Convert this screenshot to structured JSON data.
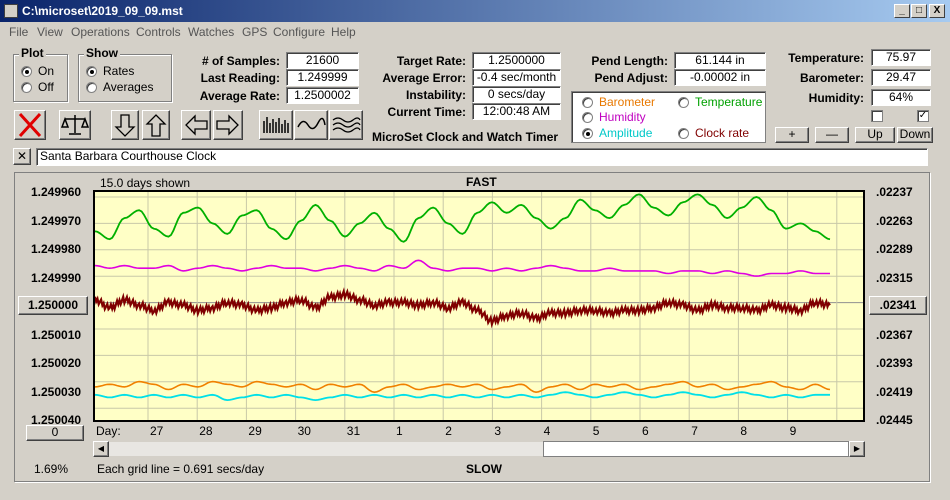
{
  "window": {
    "title": "C:\\microset\\2019_09_09.mst",
    "min": "_",
    "max": "□",
    "close": "X"
  },
  "menu": [
    "File",
    "View",
    "Operations",
    "Controls",
    "Watches",
    "GPS",
    "Configure",
    "Help"
  ],
  "plot_group": {
    "title": "Plot",
    "on": "On",
    "off": "Off",
    "selected": "On"
  },
  "show_group": {
    "title": "Show",
    "rates": "Rates",
    "averages": "Averages",
    "selected": "Rates"
  },
  "stats": {
    "samples_label": "# of Samples:",
    "samples": "21600",
    "last_label": "Last Reading:",
    "last": "1.249999",
    "avg_label": "Average Rate:",
    "avg": "1.2500002",
    "target_label": "Target Rate:",
    "target": "1.2500000",
    "err_label": "Average Error:",
    "err": "-0.4 sec/month",
    "inst_label": "Instability:",
    "inst": "0 secs/day",
    "time_label": "Current Time:",
    "time": "12:00:48 AM",
    "pend_len_label": "Pend Length:",
    "pend_len": "61.144 in",
    "pend_adj_label": "Pend Adjust:",
    "pend_adj": "-0.00002 in",
    "temp_label": "Temperature:",
    "temp": "75.97",
    "baro_label": "Barometer:",
    "baro": "29.47",
    "hum_label": "Humidity:",
    "hum": "64%"
  },
  "app_name": "MicroSet Clock and Watch Timer",
  "sensor_options": [
    {
      "label": "Barometer",
      "color": "#e87800"
    },
    {
      "label": "Temperature",
      "color": "#00a000"
    },
    {
      "label": "Humidity",
      "color": "#c000c0"
    },
    {
      "label": "Amplitude",
      "color": "#00c8c8"
    },
    {
      "label": "Clock rate",
      "color": "#800000"
    }
  ],
  "sensor_selected": "Amplitude",
  "adjust_buttons": {
    "plus": "+",
    "minus": "—",
    "up": "Up",
    "down": "Down"
  },
  "clock_name": "Santa Barbara Courthouse Clock",
  "clear_icon": "x-icon",
  "toolbar_icons": [
    "stop-icon",
    "balance-icon",
    "arrow-down-icon",
    "arrow-up-icon",
    "arrow-left-icon",
    "arrow-right-icon",
    "bar-graph-icon",
    "wave-icon",
    "multi-wave-icon"
  ],
  "chart_header": {
    "days_shown": "15.0 days shown",
    "fast": "FAST",
    "slow": "SLOW",
    "grid_note": "Each grid line = 0.691 secs/day",
    "percent": "1.69%"
  },
  "chart_data": {
    "type": "line",
    "left_ticks": [
      "1.249960",
      "1.249970",
      "1.249980",
      "1.249990",
      "1.250000",
      "1.250010",
      "1.250020",
      "1.250030",
      "1.250040"
    ],
    "right_ticks": [
      ".02237",
      ".02263",
      ".02289",
      ".02315",
      ".02341",
      ".02367",
      ".02393",
      ".02419",
      ".02445"
    ],
    "center_left": "1.250000",
    "center_right": ".02341",
    "bottom_left_btn": "0",
    "x_prefix": "Day:",
    "days": [
      "27",
      "28",
      "29",
      "30",
      "31",
      "1",
      "2",
      "3",
      "4",
      "5",
      "6",
      "7",
      "8",
      "9"
    ],
    "ylim": [
      1.24996,
      1.25004
    ],
    "series_colors": {
      "temperature": "#00b000",
      "humidity": "#e000e0",
      "rate": "#800000",
      "barometer": "#f08000",
      "amplitude": "#00e0e8"
    },
    "temperature": [
      1.249973,
      1.249976,
      1.249968,
      1.249965,
      1.249972,
      1.249975,
      1.249966,
      1.249964,
      1.24997,
      1.249974,
      1.249967,
      1.249965,
      1.249972,
      1.249976,
      1.249969,
      1.249963,
      1.249969,
      1.249975,
      1.24997,
      1.249966,
      1.249972,
      1.249977,
      1.249968,
      1.249964,
      1.24997,
      1.249974,
      1.249966,
      1.249962,
      1.249966,
      1.249963,
      1.249968,
      1.249972,
      1.249968,
      1.249961,
      1.249965,
      1.249968,
      1.249963,
      1.249959,
      1.249964,
      1.249967,
      1.249962,
      1.249959,
      1.249963,
      1.249968,
      1.249964,
      1.24996,
      1.249965,
      1.249972,
      1.24997,
      1.249973,
      1.249976
    ],
    "humidity": [
      1.249986,
      1.249987,
      1.249986,
      1.249987,
      1.249987,
      1.249986,
      1.249988,
      1.249987,
      1.249986,
      1.249987,
      1.249988,
      1.249987,
      1.249986,
      1.249987,
      1.249987,
      1.249988,
      1.249987,
      1.249986,
      1.249987,
      1.249988,
      1.249986,
      1.249987,
      1.249984,
      1.249987,
      1.249988,
      1.249987,
      1.249987,
      1.249988,
      1.249987,
      1.249988,
      1.249987,
      1.249986,
      1.249987,
      1.249988,
      1.249988,
      1.249987,
      1.249988,
      1.249988,
      1.249988,
      1.249989,
      1.249988,
      1.249988,
      1.249989,
      1.249988,
      1.249989,
      1.24999,
      1.249989,
      1.249989,
      1.249988,
      1.249989,
      1.249989
    ],
    "rate": [
      1.249999,
      1.250002,
      1.249999,
      1.250001,
      1.250003,
      1.25,
      1.250001,
      1.250003,
      1.250002,
      1.25,
      1.250001,
      1.250003,
      1.250002,
      1.25,
      1.249999,
      1.250002,
      1.249998,
      1.249997,
      1.249999,
      1.250001,
      1.25,
      1.25,
      1.250001,
      1.25,
      1.250002,
      1.25,
      1.250003,
      1.250007,
      1.250005,
      1.250004,
      1.250006,
      1.250004,
      1.250004,
      1.250003,
      1.250003,
      1.250004,
      1.250003,
      1.250003,
      1.250002,
      1.25,
      1.250001,
      1.250003,
      1.250001,
      1.250002,
      1.250002,
      1.250003,
      1.250001,
      1.250002,
      1.250003,
      1.25,
      1.250001
    ],
    "barometer": [
      1.250032,
      1.250031,
      1.250032,
      1.25003,
      1.250031,
      1.250033,
      1.250031,
      1.250032,
      1.25003,
      1.250031,
      1.250032,
      1.25003,
      1.250031,
      1.250032,
      1.250031,
      1.250033,
      1.250031,
      1.250032,
      1.250031,
      1.250034,
      1.250032,
      1.250031,
      1.250033,
      1.250032,
      1.250031,
      1.250032,
      1.250031,
      1.250033,
      1.250032,
      1.250031,
      1.250034,
      1.250032,
      1.250031,
      1.250033,
      1.250031,
      1.250032,
      1.250031,
      1.250033,
      1.250032,
      1.250031,
      1.25003,
      1.250032,
      1.250031,
      1.250033,
      1.250032,
      1.250031,
      1.25003,
      1.250032,
      1.250033,
      1.250031,
      1.250033
    ],
    "amplitude": [
      1.250035,
      1.250036,
      1.250035,
      1.250036,
      1.250035,
      1.250036,
      1.250035,
      1.250036,
      1.250035,
      1.250037,
      1.250036,
      1.250035,
      1.250036,
      1.250035,
      1.250036,
      1.250037,
      1.250036,
      1.250035,
      1.250036,
      1.250035,
      1.250036,
      1.250035,
      1.250036,
      1.250035,
      1.250036,
      1.250035,
      1.250036,
      1.250035,
      1.250036,
      1.250035,
      1.250036,
      1.250035,
      1.250034,
      1.250035,
      1.250036,
      1.250035,
      1.250034,
      1.250035,
      1.250036,
      1.250035,
      1.250034,
      1.250035,
      1.250036,
      1.250035,
      1.250034,
      1.250035,
      1.250036,
      1.250035,
      1.250036,
      1.250035,
      1.250035
    ]
  }
}
